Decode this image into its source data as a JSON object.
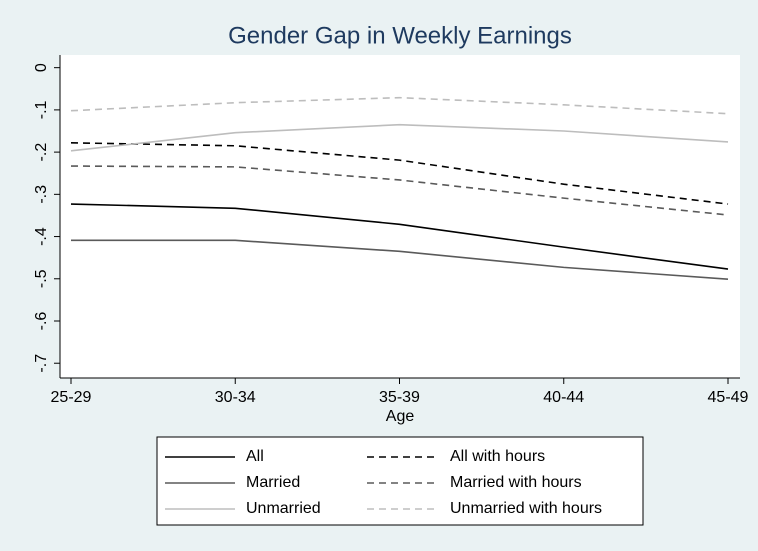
{
  "chart_data": {
    "type": "line",
    "title": "Gender Gap in Weekly Earnings",
    "x_label": "Age",
    "categories": [
      "25-29",
      "30-34",
      "35-39",
      "40-44",
      "45-49"
    ],
    "series": [
      {
        "name": "All",
        "color": "#000000",
        "style": "solid",
        "values": [
          -0.323,
          -0.333,
          -0.371,
          -0.425,
          -0.477
        ]
      },
      {
        "name": "All with hours",
        "color": "#000000",
        "style": "dashed",
        "values": [
          -0.178,
          -0.185,
          -0.219,
          -0.276,
          -0.323
        ]
      },
      {
        "name": "Married",
        "color": "#5a5a5a",
        "style": "solid",
        "values": [
          -0.409,
          -0.409,
          -0.435,
          -0.473,
          -0.501
        ]
      },
      {
        "name": "Married with hours",
        "color": "#5a5a5a",
        "style": "dashed",
        "values": [
          -0.233,
          -0.235,
          -0.266,
          -0.309,
          -0.349
        ]
      },
      {
        "name": "Unmarried",
        "color": "#bdbdbd",
        "style": "solid",
        "values": [
          -0.197,
          -0.154,
          -0.135,
          -0.15,
          -0.176
        ]
      },
      {
        "name": "Unmarried with hours",
        "color": "#bdbdbd",
        "style": "dashed",
        "values": [
          -0.102,
          -0.083,
          -0.071,
          -0.088,
          -0.109
        ]
      }
    ],
    "ylim": [
      -0.735,
      0.03
    ],
    "yticks": [
      0,
      {
        "value": -0.1,
        "label": "-.1"
      },
      {
        "value": -0.2,
        "label": "-.2"
      },
      {
        "value": -0.3,
        "label": "-.3"
      },
      {
        "value": -0.4,
        "label": "-.4"
      },
      {
        "value": -0.5,
        "label": "-.5"
      },
      {
        "value": -0.6,
        "label": "-.6"
      },
      {
        "value": -0.7,
        "label": "-.7"
      }
    ],
    "legend": "bottom"
  }
}
